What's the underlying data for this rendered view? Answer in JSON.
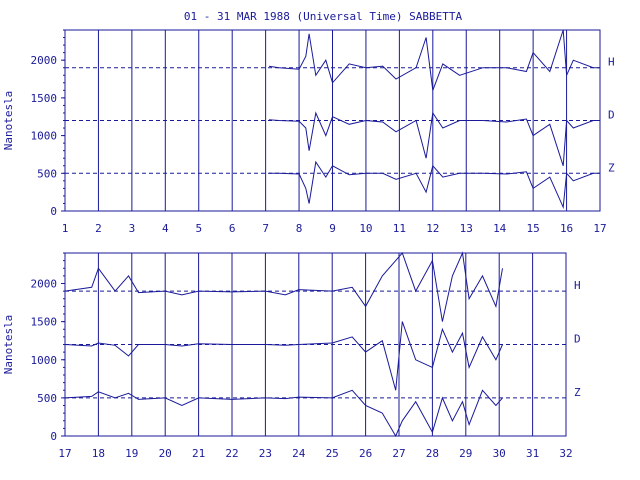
{
  "chart_data": [
    {
      "type": "line",
      "title": "01 - 31 MAR 1988 (Universal Time) SABBETTA",
      "xlabel": "",
      "ylabel": "Nanotesla",
      "x_ticks": [
        1,
        2,
        3,
        4,
        5,
        6,
        7,
        8,
        9,
        10,
        11,
        12,
        13,
        14,
        15,
        16,
        17
      ],
      "y_ticks": [
        0,
        500,
        1000,
        1500,
        2000
      ],
      "xlim": [
        1,
        17
      ],
      "ylim": [
        0,
        2400
      ],
      "baselines": {
        "H": 1900,
        "D": 1200,
        "Z": 500
      },
      "series": [
        {
          "name": "H",
          "x": [
            7.1,
            7.4,
            8.0,
            8.2,
            8.3,
            8.5,
            8.8,
            9.0,
            9.5,
            10.0,
            10.5,
            10.9,
            11.5,
            11.8,
            12.0,
            12.3,
            12.8,
            13.5,
            14.2,
            14.8,
            15.0,
            15.5,
            15.9,
            16.0,
            16.2,
            16.8,
            17.0
          ],
          "y": [
            1920,
            1900,
            1880,
            2050,
            2350,
            1800,
            2000,
            1700,
            1950,
            1900,
            1920,
            1750,
            1900,
            2300,
            1600,
            1950,
            1800,
            1900,
            1900,
            1850,
            2100,
            1850,
            2400,
            1800,
            2000,
            1900,
            1900
          ]
        },
        {
          "name": "D",
          "x": [
            7.1,
            7.4,
            8.0,
            8.2,
            8.3,
            8.5,
            8.8,
            9.0,
            9.5,
            10.0,
            10.5,
            10.9,
            11.5,
            11.8,
            12.0,
            12.3,
            12.8,
            13.5,
            14.2,
            14.8,
            15.0,
            15.5,
            15.9,
            16.0,
            16.2,
            16.8,
            17.0
          ],
          "y": [
            1210,
            1200,
            1190,
            1100,
            800,
            1300,
            1000,
            1250,
            1150,
            1200,
            1180,
            1050,
            1200,
            700,
            1300,
            1100,
            1200,
            1200,
            1180,
            1220,
            1000,
            1150,
            600,
            1200,
            1100,
            1200,
            1200
          ]
        },
        {
          "name": "Z",
          "x": [
            7.1,
            7.4,
            8.0,
            8.2,
            8.3,
            8.5,
            8.8,
            9.0,
            9.5,
            10.0,
            10.5,
            10.9,
            11.5,
            11.8,
            12.0,
            12.3,
            12.8,
            13.5,
            14.2,
            14.8,
            15.0,
            15.5,
            15.9,
            16.0,
            16.2,
            16.8,
            17.0
          ],
          "y": [
            500,
            500,
            490,
            300,
            100,
            650,
            450,
            600,
            480,
            500,
            500,
            420,
            500,
            250,
            600,
            450,
            500,
            500,
            490,
            520,
            300,
            450,
            50,
            500,
            400,
            500,
            500
          ]
        }
      ],
      "labels": [
        "H",
        "D",
        "Z"
      ]
    },
    {
      "type": "line",
      "title": "",
      "xlabel": "",
      "ylabel": "Nanotesla",
      "x_ticks": [
        17,
        18,
        19,
        20,
        21,
        22,
        23,
        24,
        25,
        26,
        27,
        28,
        29,
        30,
        31,
        32
      ],
      "y_ticks": [
        0,
        500,
        1000,
        1500,
        2000
      ],
      "xlim": [
        17,
        32
      ],
      "ylim": [
        0,
        2400
      ],
      "baselines": {
        "H": 1900,
        "D": 1200,
        "Z": 500
      },
      "series": [
        {
          "name": "H",
          "x": [
            17.0,
            17.8,
            18.0,
            18.5,
            18.9,
            19.2,
            20.0,
            20.5,
            21.0,
            22.0,
            23.0,
            23.6,
            24.0,
            25.0,
            25.6,
            26.0,
            26.5,
            26.9,
            27.1,
            27.5,
            28.0,
            28.3,
            28.6,
            28.9,
            29.1,
            29.5,
            29.9,
            30.1
          ],
          "y": [
            1900,
            1950,
            2200,
            1900,
            2100,
            1880,
            1900,
            1850,
            1900,
            1890,
            1900,
            1850,
            1920,
            1900,
            1950,
            1700,
            2100,
            2300,
            2400,
            1900,
            2300,
            1500,
            2100,
            2400,
            1800,
            2100,
            1700,
            2200
          ]
        },
        {
          "name": "D",
          "x": [
            17.0,
            17.8,
            18.0,
            18.5,
            18.9,
            19.2,
            20.0,
            20.5,
            21.0,
            22.0,
            23.0,
            23.6,
            24.0,
            25.0,
            25.6,
            26.0,
            26.5,
            26.9,
            27.1,
            27.5,
            28.0,
            28.3,
            28.6,
            28.9,
            29.1,
            29.5,
            29.9,
            30.1
          ],
          "y": [
            1200,
            1180,
            1220,
            1190,
            1050,
            1200,
            1200,
            1180,
            1210,
            1200,
            1200,
            1190,
            1200,
            1220,
            1300,
            1100,
            1250,
            600,
            1500,
            1000,
            900,
            1400,
            1100,
            1350,
            900,
            1300,
            1000,
            1200
          ]
        },
        {
          "name": "Z",
          "x": [
            17.0,
            17.8,
            18.0,
            18.5,
            18.9,
            19.2,
            20.0,
            20.5,
            21.0,
            22.0,
            23.0,
            23.6,
            24.0,
            25.0,
            25.6,
            26.0,
            26.5,
            26.9,
            27.1,
            27.5,
            28.0,
            28.3,
            28.6,
            28.9,
            29.1,
            29.5,
            29.9,
            30.1
          ],
          "y": [
            500,
            520,
            580,
            500,
            560,
            480,
            500,
            400,
            500,
            480,
            500,
            490,
            510,
            500,
            600,
            400,
            300,
            0,
            200,
            450,
            50,
            500,
            200,
            450,
            150,
            600,
            400,
            500
          ]
        }
      ],
      "labels": [
        "H",
        "D",
        "Z"
      ]
    }
  ]
}
